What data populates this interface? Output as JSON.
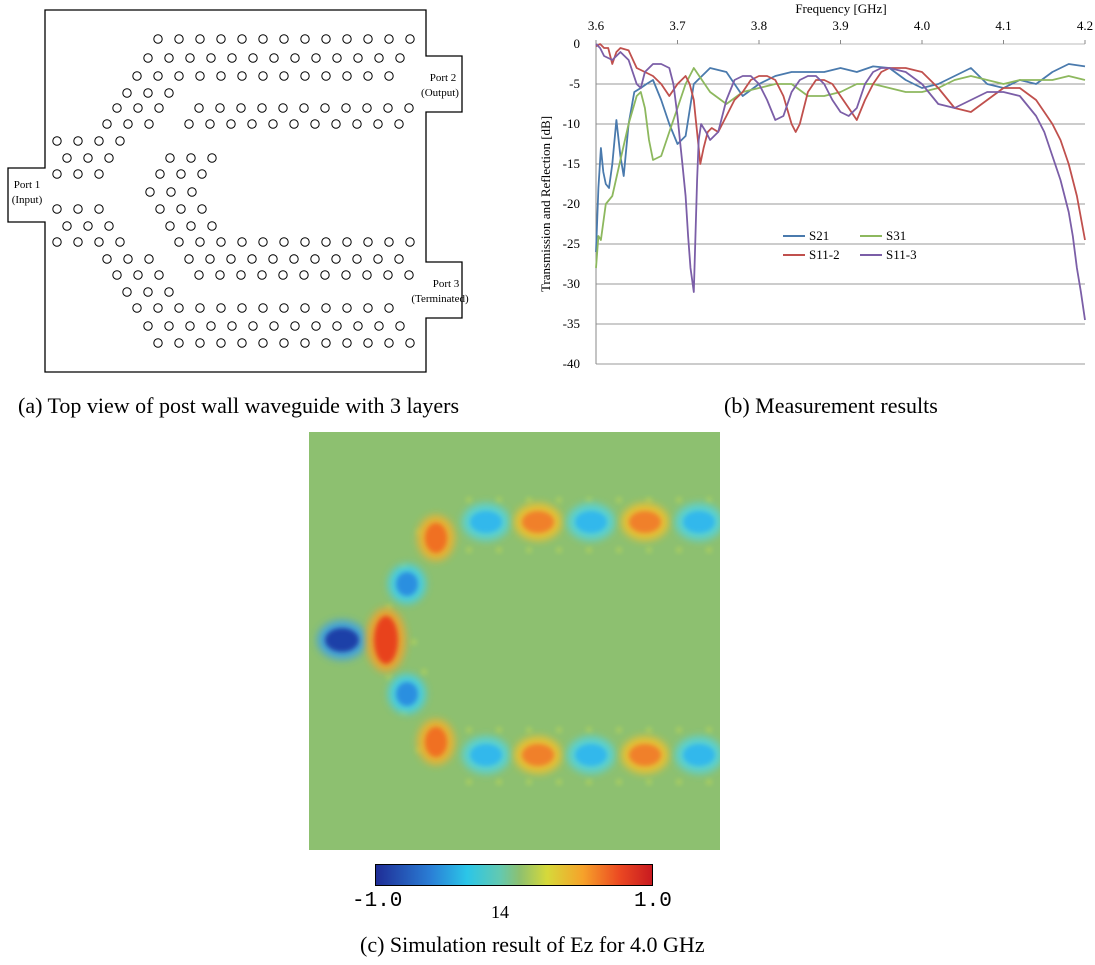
{
  "waveguide": {
    "port1_name": "Port 1",
    "port1_sub": "(Input)",
    "port2_name": "Port 2",
    "port2_sub": "(Output)",
    "port3_name": "Port 3",
    "port3_sub": "(Terminated)"
  },
  "chart_data": {
    "type": "line",
    "xlabel": "Frequency [GHz]",
    "ylabel": "Transmission and Reflection [dB]",
    "xlim": [
      3.6,
      4.2
    ],
    "ylim": [
      -40,
      0
    ],
    "x_axis_position": "top",
    "x_ticks": [
      "3.6",
      "3.7",
      "3.8",
      "3.9",
      "4.0",
      "4.1",
      "4.2"
    ],
    "y_ticks": [
      "0",
      "-5",
      "-10",
      "-15",
      "-20",
      "-25",
      "-30",
      "-35",
      "-40"
    ],
    "grid": "horizontal",
    "legend_position": "lower-middle",
    "series": [
      {
        "name": "S21",
        "color": "#4a7aad",
        "x": [
          3.6,
          3.603,
          3.606,
          3.609,
          3.612,
          3.616,
          3.62,
          3.625,
          3.63,
          3.634,
          3.64,
          3.647,
          3.655,
          3.662,
          3.67,
          3.68,
          3.69,
          3.7,
          3.71,
          3.72,
          3.74,
          3.76,
          3.78,
          3.8,
          3.82,
          3.84,
          3.86,
          3.88,
          3.9,
          3.92,
          3.94,
          3.96,
          3.98,
          4.0,
          4.02,
          4.04,
          4.06,
          4.08,
          4.1,
          4.12,
          4.14,
          4.16,
          4.18,
          4.2
        ],
        "y": [
          -26,
          -18,
          -13,
          -16,
          -17.5,
          -18,
          -15,
          -9.5,
          -14,
          -16.5,
          -10,
          -6,
          -5.5,
          -5,
          -4.5,
          -7,
          -10,
          -12.5,
          -11.5,
          -5,
          -3,
          -3.5,
          -6.5,
          -5,
          -4,
          -3.5,
          -3.5,
          -3.5,
          -3,
          -3.5,
          -2.8,
          -3,
          -4.5,
          -5.5,
          -5,
          -4,
          -3,
          -5,
          -5.5,
          -4.5,
          -5,
          -3.5,
          -2.5,
          -2.8
        ]
      },
      {
        "name": "S31",
        "color": "#8db85e",
        "x": [
          3.6,
          3.603,
          3.606,
          3.612,
          3.62,
          3.63,
          3.64,
          3.65,
          3.655,
          3.66,
          3.665,
          3.67,
          3.68,
          3.69,
          3.7,
          3.71,
          3.72,
          3.74,
          3.76,
          3.78,
          3.8,
          3.82,
          3.84,
          3.86,
          3.88,
          3.9,
          3.92,
          3.94,
          3.96,
          3.98,
          4.0,
          4.02,
          4.04,
          4.06,
          4.08,
          4.1,
          4.12,
          4.14,
          4.16,
          4.18,
          4.2
        ],
        "y": [
          -28,
          -24,
          -24.5,
          -20,
          -19,
          -14.5,
          -10,
          -6.5,
          -6,
          -8,
          -12,
          -14.5,
          -14,
          -11,
          -8,
          -5,
          -3,
          -6,
          -7.5,
          -6,
          -5.5,
          -5,
          -5,
          -6.5,
          -6.5,
          -6,
          -5,
          -5,
          -5.5,
          -6,
          -6,
          -5.5,
          -4.5,
          -4,
          -4.5,
          -5,
          -4.5,
          -4.5,
          -4.5,
          -4,
          -4.5
        ]
      },
      {
        "name": "S11-2",
        "color": "#c0504d",
        "x": [
          3.6,
          3.605,
          3.61,
          3.615,
          3.62,
          3.625,
          3.63,
          3.64,
          3.65,
          3.66,
          3.67,
          3.68,
          3.69,
          3.7,
          3.71,
          3.715,
          3.72,
          3.722,
          3.725,
          3.728,
          3.732,
          3.737,
          3.742,
          3.75,
          3.76,
          3.77,
          3.78,
          3.79,
          3.8,
          3.81,
          3.82,
          3.83,
          3.84,
          3.845,
          3.85,
          3.86,
          3.87,
          3.88,
          3.89,
          3.9,
          3.91,
          3.92,
          3.93,
          3.94,
          3.95,
          3.96,
          3.98,
          4.0,
          4.02,
          4.04,
          4.06,
          4.08,
          4.1,
          4.12,
          4.14,
          4.15,
          4.16,
          4.17,
          4.18,
          4.19,
          4.2
        ],
        "y": [
          -0.3,
          0,
          -0.5,
          -0.5,
          -2.5,
          -1,
          -0.5,
          -0.8,
          -3,
          -3.5,
          -4,
          -5,
          -6.5,
          -5,
          -4,
          -5,
          -7,
          -9,
          -12,
          -15,
          -13,
          -11,
          -10.5,
          -11,
          -9,
          -7,
          -6,
          -4.5,
          -4,
          -4,
          -4.5,
          -6.5,
          -10,
          -11,
          -10,
          -6,
          -4.5,
          -4.5,
          -5,
          -6.5,
          -8,
          -9.5,
          -7,
          -5,
          -3.5,
          -3,
          -3,
          -3.5,
          -5.5,
          -8,
          -8.5,
          -7,
          -5.5,
          -5.5,
          -7,
          -8.5,
          -10,
          -12,
          -15,
          -19,
          -24.5
        ]
      },
      {
        "name": "S11-3",
        "color": "#7b5ea7",
        "x": [
          3.6,
          3.605,
          3.61,
          3.62,
          3.625,
          3.63,
          3.64,
          3.65,
          3.655,
          3.66,
          3.67,
          3.68,
          3.69,
          3.695,
          3.7,
          3.703,
          3.706,
          3.71,
          3.713,
          3.716,
          3.72,
          3.724,
          3.726,
          3.729,
          3.735,
          3.74,
          3.75,
          3.76,
          3.77,
          3.78,
          3.79,
          3.8,
          3.81,
          3.82,
          3.83,
          3.84,
          3.85,
          3.86,
          3.87,
          3.88,
          3.89,
          3.9,
          3.91,
          3.92,
          3.93,
          3.94,
          3.95,
          3.96,
          3.98,
          4.0,
          4.02,
          4.04,
          4.06,
          4.08,
          4.1,
          4.12,
          4.14,
          4.15,
          4.16,
          4.17,
          4.18,
          4.185,
          4.19,
          4.195,
          4.2
        ],
        "y": [
          0,
          -0.5,
          -1.5,
          -2,
          -1.5,
          -1,
          -2,
          -5,
          -5.5,
          -3.5,
          -2.5,
          -2.5,
          -3,
          -5,
          -9,
          -12,
          -15,
          -19,
          -24,
          -28,
          -31,
          -17,
          -12,
          -10,
          -11,
          -12,
          -11,
          -7,
          -4.5,
          -4,
          -4,
          -5,
          -7,
          -9.5,
          -9,
          -6,
          -4.5,
          -4,
          -4,
          -5,
          -7,
          -8.5,
          -9,
          -8,
          -5,
          -3.5,
          -3,
          -3,
          -3.5,
          -5,
          -7.5,
          -8,
          -7,
          -6,
          -6,
          -6.5,
          -9,
          -11,
          -14,
          -17,
          -21,
          -24,
          -28,
          -31,
          -34.5
        ]
      }
    ]
  },
  "colorbar": {
    "min_label": "-1.0",
    "max_label": "1.0",
    "center_text": "14"
  },
  "captions": {
    "a": "(a) Top view of post wall waveguide with 3 layers",
    "b": "(b) Measurement results",
    "c": "(c) Simulation result of Ez for 4.0 GHz"
  }
}
